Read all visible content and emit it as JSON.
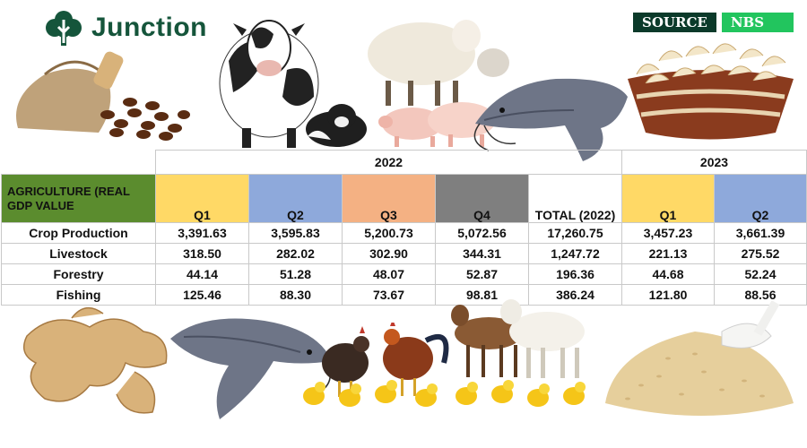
{
  "brand": {
    "name": "Junction",
    "color": "#15553b"
  },
  "source": {
    "key": "SOURCE",
    "value": "NBS"
  },
  "table": {
    "corner_label": "AGRICULTURE (REAL GDP VALUE",
    "years": {
      "y2022": "2022",
      "y2023": "2023"
    },
    "columns": [
      "Q1",
      "Q2",
      "Q3",
      "Q4",
      "TOTAL (2022)",
      "Q1",
      "Q2"
    ],
    "rows": [
      {
        "label": "Crop Production",
        "values": [
          "3,391.63",
          "3,595.83",
          "5,200.73",
          "5,072.56",
          "17,260.75",
          "3,457.23",
          "3,661.39"
        ]
      },
      {
        "label": "Livestock",
        "values": [
          "318.50",
          "282.02",
          "302.90",
          "344.31",
          "1,247.72",
          "221.13",
          "275.52"
        ]
      },
      {
        "label": "Forestry",
        "values": [
          "44.14",
          "51.28",
          "48.07",
          "52.87",
          "196.36",
          "44.68",
          "52.24"
        ]
      },
      {
        "label": "Fishing",
        "values": [
          "125.46",
          "88.30",
          "73.67",
          "98.81",
          "386.24",
          "121.80",
          "88.56"
        ]
      }
    ]
  },
  "images": [
    "coffee-beans",
    "cow",
    "calf",
    "sheep",
    "pigs",
    "catfish",
    "cashew-basket",
    "ginger",
    "chickens",
    "chicks",
    "goats",
    "sesame-seeds"
  ]
}
